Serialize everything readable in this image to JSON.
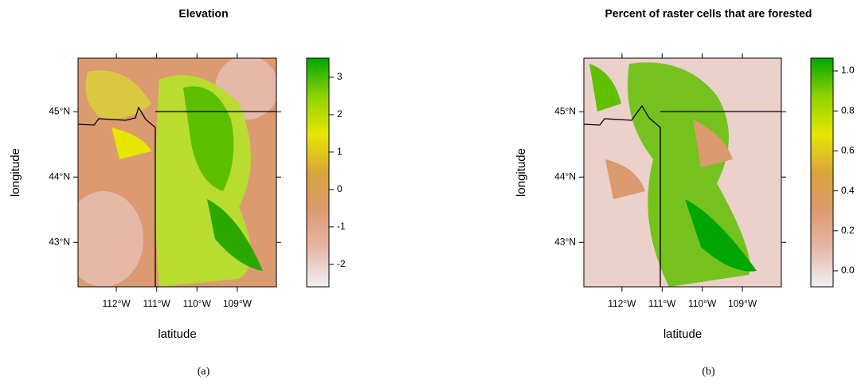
{
  "chart_data": [
    {
      "type": "raster",
      "title": "Elevation",
      "x_label": "latitude",
      "y_label": "longitude",
      "caption": "(a)",
      "xlim": [
        -112.95,
        -108.03
      ],
      "ylim": [
        42.32,
        45.82
      ],
      "xticks": [
        {
          "value": -112,
          "label": "112°W"
        },
        {
          "value": -111,
          "label": "111°W"
        },
        {
          "value": -110,
          "label": "110°W"
        },
        {
          "value": -109,
          "label": "109°W"
        }
      ],
      "yticks": [
        {
          "value": 43,
          "label": "43°N"
        },
        {
          "value": 44,
          "label": "44°N"
        },
        {
          "value": 45,
          "label": "45°N"
        }
      ],
      "zlim": [
        -2.6,
        3.51
      ],
      "zticks": [
        -2,
        -1,
        0,
        1,
        2,
        3
      ],
      "colors": [
        "#f2f0f0",
        "#e6b8a8",
        "#dc9a70",
        "#d9a53a",
        "#e6e600",
        "#8fd400",
        "#00a600"
      ]
    },
    {
      "type": "raster",
      "title": "Percent of raster cells that are forested",
      "x_label": "latitude",
      "y_label": "longitude",
      "caption": "(b)",
      "xlim": [
        -112.95,
        -108.03
      ],
      "ylim": [
        42.32,
        45.82
      ],
      "xticks": [
        {
          "value": -112,
          "label": "112°W"
        },
        {
          "value": -111,
          "label": "111°W"
        },
        {
          "value": -110,
          "label": "110°W"
        },
        {
          "value": -109,
          "label": "109°W"
        }
      ],
      "yticks": [
        {
          "value": 43,
          "label": "43°N"
        },
        {
          "value": 44,
          "label": "44°N"
        },
        {
          "value": 45,
          "label": "45°N"
        }
      ],
      "zlim": [
        -0.08,
        1.064
      ],
      "zticks": [
        {
          "value": 0,
          "label": "0.0"
        },
        0.2,
        0.4,
        0.6,
        0.8,
        {
          "value": 1,
          "label": "1.0"
        }
      ],
      "colors": [
        "#f2f0f0",
        "#e6b8a8",
        "#dc9a70",
        "#d9a53a",
        "#e6e600",
        "#8fd400",
        "#00a600"
      ]
    }
  ]
}
